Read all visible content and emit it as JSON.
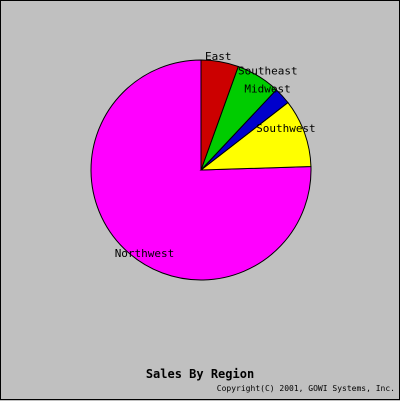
{
  "chart_data": {
    "type": "pie",
    "title": "Sales By Region",
    "copyright": "Copyright(C) 2001, GOWI Systems, Inc.",
    "start_angle_deg": 90,
    "direction": "counterclockwise",
    "slices": [
      {
        "label": "Northwest",
        "value": 75.5,
        "color": "#ff00ff"
      },
      {
        "label": "Southwest",
        "value": 10.0,
        "color": "#ffff00"
      },
      {
        "label": "Midwest",
        "value": 2.5,
        "color": "#0000cc"
      },
      {
        "label": "Southeast",
        "value": 6.5,
        "color": "#00cc00"
      },
      {
        "label": "East",
        "value": 5.5,
        "color": "#cc0000"
      }
    ]
  }
}
